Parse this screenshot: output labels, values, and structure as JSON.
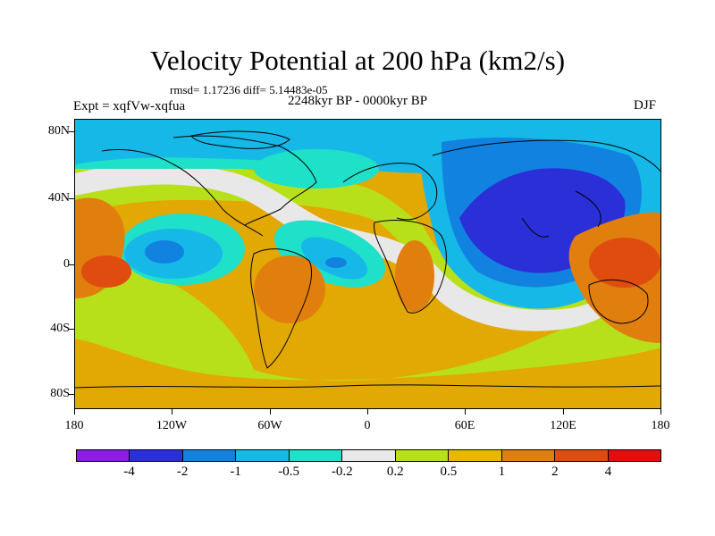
{
  "title": "Velocity Potential at 200 hPa (km2/s)",
  "rmsd_line": "rmsd= 1.17236 diff= 5.14483e-05",
  "period": "2248kyr BP - 0000kyr BP",
  "experiment": "Expt = xqfVw-xqfua",
  "season": "DJF",
  "lat_labels": [
    "80N",
    "40N",
    "0",
    "40S",
    "80S"
  ],
  "lon_labels": [
    "180",
    "120W",
    "60W",
    "0",
    "60E",
    "120E",
    "180"
  ],
  "colorbar": {
    "labels": [
      "-4",
      "-2",
      "-1",
      "-0.5",
      "-0.2",
      "0.2",
      "0.5",
      "1",
      "2",
      "4"
    ],
    "colors": [
      "#8a1ee6",
      "#2a2fd8",
      "#1282e0",
      "#16b8e8",
      "#1fe0c8",
      "#e8e8e8",
      "#b8e01a",
      "#e8b800",
      "#e07e0e",
      "#e04c10",
      "#e01010"
    ]
  },
  "palette": {
    "ocean_base": "#e2a804",
    "dark_blue": "#2a2fd8",
    "mid_blue": "#1282e0",
    "light_blue": "#16b8e8",
    "cyan": "#1fe0c8",
    "white": "#e8e8e8",
    "lime": "#b8e01a",
    "orange": "#e07e0e",
    "red": "#e04c10"
  }
}
